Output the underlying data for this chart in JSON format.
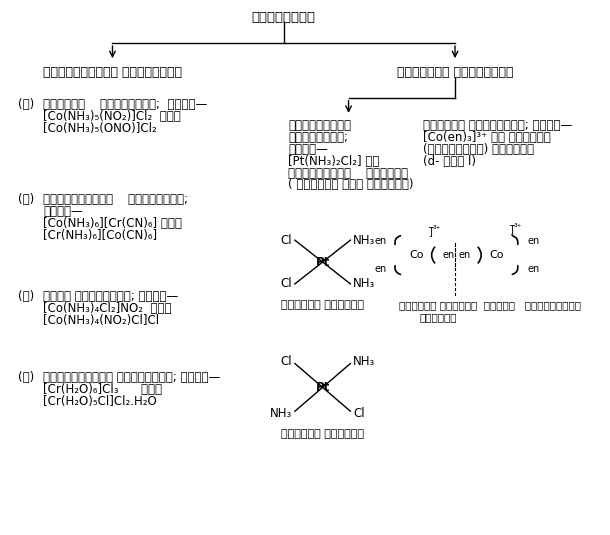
{
  "bg_color": "#ffffff",
  "title": "समावयवता",
  "branch1": "संरचनात्मक समावयवता",
  "branch2": "त्रिविम समावयवता",
  "sub_branch1": "ज्यामितीय",
  "sub_branch1b": "समावयवता;",
  "sub_branch1c": "जैसे—",
  "geom_text1": "[Pt(NH₃)₂Cl₂] के",
  "geom_text2": "ज्यामितीय    समावयव",
  "geom_text3": "( समपक्ष एवं विपक्ष)",
  "optical_title": "ध्रुवण समावयवता; जैसे—",
  "optical_text1": "[Co(en)₃]³⁺ के ध्रुवण",
  "optical_text2": "(प्रकाशिक) समावयव",
  "optical_text3": "(d- तथा l)",
  "ka_label": "(क)",
  "ka_text1": "बन्धनी    समावयवता;  जैसे—",
  "ka_text2": "[Co(NH₃)₅(NO₂)]Cl₂  तथा",
  "ka_text3": "[Co(NH₃)₅(ONO)]Cl₂",
  "kha_label": "(ख)",
  "kha_text1": "उपसहसंयोजन    समावयवता;",
  "kha_text2": "जैसे—",
  "kha_text3": "[Co(NH₃)₆][Cr(CN)₆] तथा",
  "kha_text4": "[Cr(NH₃)₆][Co(CN)₆]",
  "ga_label": "(ग)",
  "ga_text1": "आयनन समावयवता; जैसे—",
  "ga_text2": "[Co(NH₃)₄Cl₂]NO₂  तथा",
  "ga_text3": "[Co(NH₃)₄(NO₂)Cl]Cl",
  "gha_label": "(घ)",
  "gha_text1": "विलायकयोजन समावयवता; जैसे—",
  "gha_text2": "[Cr(H₂O)₆]Cl₃      तथा",
  "gha_text3": "[Cr(H₂O)₅Cl]Cl₂.H₂O",
  "cis_label": "समपक्ष समावयव",
  "trans_label": "विपक्ष समावयव",
  "optical_labels": "दक्षिण ध्रुवण  दर्पण   वामावर्ती",
  "optical_labels2": "घूर्णक"
}
